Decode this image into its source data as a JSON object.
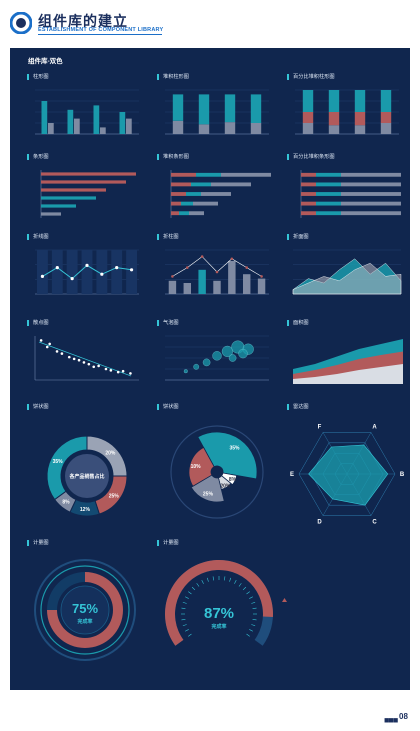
{
  "header": {
    "title": "组件库的建立",
    "subtitle": "ESTABLISHMENT OF COMPONENT LIBRARY"
  },
  "panel_title": "组件库-双色",
  "footer": {
    "page": "08"
  },
  "colors": {
    "teal": "#1a9aab",
    "red": "#b25a5b",
    "gray": "#7f8aa2",
    "bg": "#10264e",
    "cyan": "#35c4d6"
  },
  "charts": [
    {
      "id": "c1",
      "label": "柱形图"
    },
    {
      "id": "c2",
      "label": "堆积柱形图"
    },
    {
      "id": "c3",
      "label": "百分比堆积柱形图"
    },
    {
      "id": "c4",
      "label": "条形图"
    },
    {
      "id": "c5",
      "label": "堆积条形图"
    },
    {
      "id": "c6",
      "label": "百分比堆积条形图"
    },
    {
      "id": "c7",
      "label": "折线图"
    },
    {
      "id": "c8",
      "label": "折柱图"
    },
    {
      "id": "c9",
      "label": "折面图"
    },
    {
      "id": "c10",
      "label": "散点图"
    },
    {
      "id": "c11",
      "label": "气泡图"
    },
    {
      "id": "c12",
      "label": "面积图"
    },
    {
      "id": "c13",
      "label": "饼状图"
    },
    {
      "id": "c14",
      "label": "饼状图"
    },
    {
      "id": "c15",
      "label": "雷达图"
    },
    {
      "id": "c16",
      "label": "计量图"
    },
    {
      "id": "c17",
      "label": "计量图"
    }
  ],
  "chart_data": [
    {
      "type": "bar",
      "id": "c1",
      "series": [
        {
          "values": [
            75,
            55,
            65,
            50
          ]
        },
        {
          "values": [
            25,
            35,
            15,
            35
          ]
        }
      ],
      "ylim": [
        0,
        100
      ]
    },
    {
      "type": "bar",
      "id": "c2",
      "stacked": true,
      "series": [
        {
          "values": [
            30,
            22,
            27,
            25
          ]
        },
        {
          "values": [
            60,
            68,
            63,
            65
          ]
        }
      ],
      "ylim": [
        0,
        100
      ]
    },
    {
      "type": "bar",
      "id": "c3",
      "stacked": "percent",
      "series": [
        {
          "values": [
            25,
            20,
            20,
            25
          ]
        },
        {
          "values": [
            25,
            30,
            30,
            25
          ]
        },
        {
          "values": [
            50,
            50,
            50,
            50
          ]
        }
      ]
    },
    {
      "type": "bar",
      "orientation": "horizontal",
      "id": "c4",
      "series": [
        {
          "values": [
            95,
            85,
            65,
            55,
            35,
            20
          ]
        }
      ]
    },
    {
      "type": "bar",
      "orientation": "horizontal",
      "stacked": true,
      "id": "c5",
      "series": [
        {
          "values": [
            25,
            20,
            15,
            10,
            8
          ]
        },
        {
          "values": [
            25,
            20,
            15,
            12,
            10
          ]
        },
        {
          "values": [
            50,
            40,
            30,
            25,
            15
          ]
        }
      ]
    },
    {
      "type": "bar",
      "orientation": "horizontal",
      "stacked": "percent",
      "id": "c6",
      "series": [
        {
          "values": [
            15,
            15,
            15,
            15,
            15
          ]
        },
        {
          "values": [
            25,
            25,
            25,
            25,
            25
          ]
        },
        {
          "values": [
            60,
            60,
            60,
            60,
            60
          ]
        }
      ]
    },
    {
      "type": "line",
      "id": "c7",
      "values": [
        40,
        60,
        35,
        65,
        45,
        60,
        55
      ]
    },
    {
      "type": "bar",
      "id": "c8",
      "bars": [
        30,
        25,
        55,
        30,
        75,
        45,
        35
      ],
      "line": [
        40,
        60,
        85,
        50,
        80,
        60,
        40
      ]
    },
    {
      "type": "area",
      "id": "c9",
      "series": [
        {
          "values": [
            10,
            35,
            25,
            55,
            80,
            45,
            70,
            30
          ]
        },
        {
          "values": [
            10,
            25,
            40,
            30,
            55,
            70,
            40,
            45
          ]
        }
      ]
    },
    {
      "type": "scatter",
      "id": "c10",
      "points": [
        [
          5,
          90
        ],
        [
          10,
          75
        ],
        [
          12,
          82
        ],
        [
          18,
          65
        ],
        [
          22,
          60
        ],
        [
          28,
          52
        ],
        [
          32,
          48
        ],
        [
          36,
          45
        ],
        [
          40,
          40
        ],
        [
          44,
          36
        ],
        [
          48,
          30
        ],
        [
          52,
          32
        ],
        [
          58,
          25
        ],
        [
          62,
          22
        ],
        [
          68,
          18
        ],
        [
          72,
          20
        ],
        [
          78,
          15
        ]
      ]
    },
    {
      "type": "scatter",
      "bubble": true,
      "id": "c11",
      "points": [
        [
          20,
          20,
          2
        ],
        [
          30,
          30,
          3
        ],
        [
          40,
          40,
          4
        ],
        [
          50,
          55,
          5
        ],
        [
          60,
          65,
          6
        ],
        [
          70,
          75,
          7
        ],
        [
          80,
          70,
          6
        ],
        [
          65,
          50,
          4
        ],
        [
          75,
          60,
          5
        ]
      ]
    },
    {
      "type": "area",
      "id": "c12",
      "series": [
        {
          "values": [
            30,
            40,
            55,
            70,
            80,
            90
          ]
        },
        {
          "values": [
            20,
            28,
            38,
            50,
            58,
            65
          ]
        },
        {
          "values": [
            10,
            14,
            20,
            28,
            34,
            40
          ]
        }
      ]
    },
    {
      "type": "pie",
      "id": "c13",
      "center_text": "各产品销售占比",
      "slices": [
        {
          "value": 25
        },
        {
          "value": 20
        },
        {
          "value": 12
        },
        {
          "value": 8
        },
        {
          "value": 35
        }
      ]
    },
    {
      "type": "pie",
      "id": "c14",
      "slices": [
        {
          "value": 35
        },
        {
          "value": 8
        },
        {
          "value": 10
        },
        {
          "value": 20
        },
        {
          "value": 25
        }
      ]
    },
    {
      "type": "radar",
      "id": "c15",
      "axes": [
        "A",
        "B",
        "C",
        "D",
        "E",
        "F"
      ],
      "values": [
        70,
        85,
        75,
        60,
        80,
        65
      ]
    },
    {
      "type": "gauge",
      "id": "c16",
      "value": 75,
      "label": "完成率"
    },
    {
      "type": "gauge",
      "id": "c17",
      "value": 87,
      "label": "完成率"
    }
  ],
  "texts": {
    "pie1": [
      "20%",
      "25%",
      "12%",
      "8%",
      "35%"
    ],
    "pie2": [
      "35%",
      "8%",
      "20%",
      "25%",
      "10%"
    ],
    "gauge1": "75%",
    "gauge2": "87%"
  }
}
